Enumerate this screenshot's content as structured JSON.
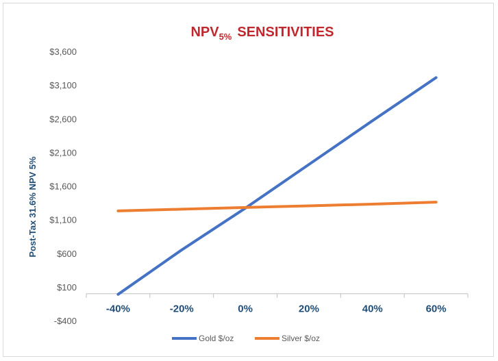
{
  "chart_data": {
    "type": "line",
    "title": "NPV",
    "title_subscript": "5%",
    "title_suffix": "SENSITIVITIES",
    "ylabel": "Post-Tax 31.6% NPV 5%",
    "xlabel": "",
    "categories": [
      "-40%",
      "-20%",
      "0%",
      "20%",
      "40%",
      "60%"
    ],
    "yticks": [
      -400,
      100,
      600,
      1100,
      1600,
      2100,
      2600,
      3100,
      3600
    ],
    "ytick_labels": [
      "-$400",
      "$100",
      "$600",
      "$1,100",
      "$1,600",
      "$2,100",
      "$2,600",
      "$3,100",
      "$3,600"
    ],
    "ylim": [
      -400,
      3600
    ],
    "x_axis_crosses_at": 0,
    "series": [
      {
        "name": "Gold $/oz",
        "color": "#4472c4",
        "values": [
          -10,
          650,
          1270,
          1920,
          2570,
          3210
        ]
      },
      {
        "name": "Silver $/oz",
        "color": "#ed7d31",
        "values": [
          1230,
          1255,
          1280,
          1305,
          1330,
          1360
        ]
      }
    ],
    "legend_position": "bottom"
  }
}
